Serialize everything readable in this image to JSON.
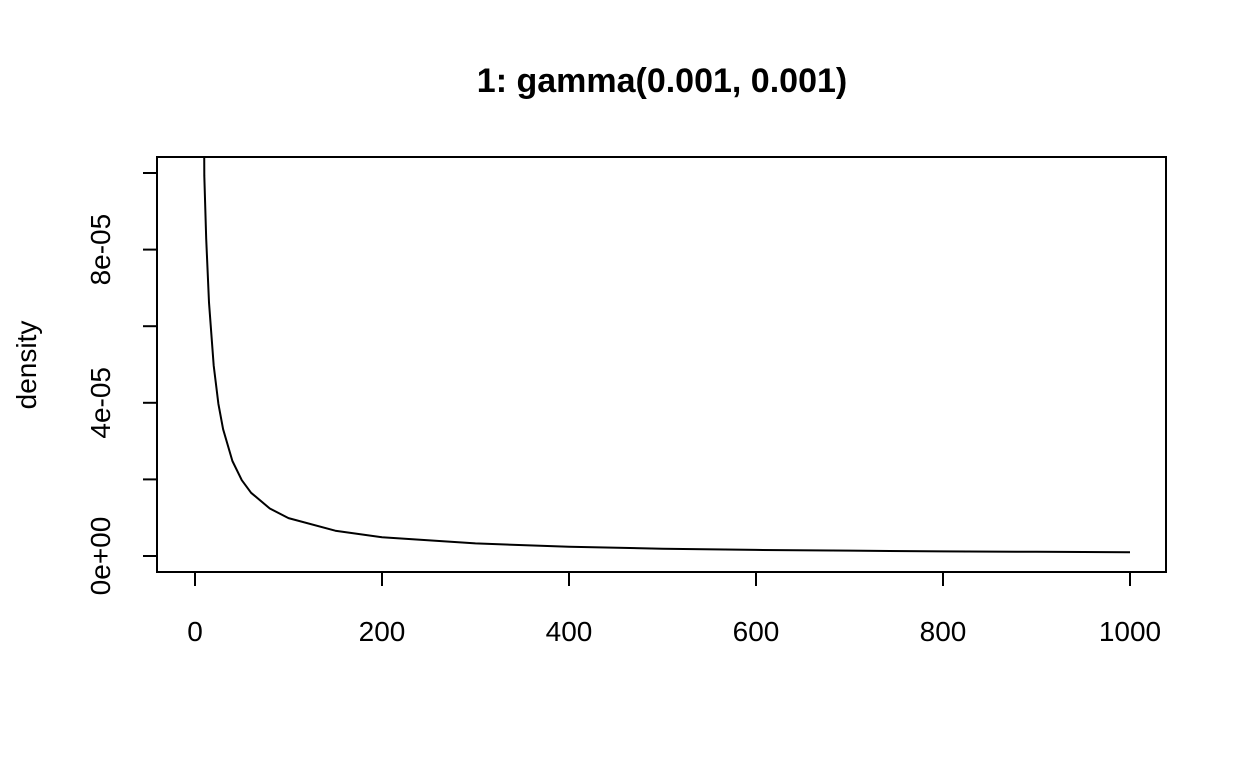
{
  "chart_data": {
    "type": "line",
    "title": "1: gamma(0.001, 0.001)",
    "xlabel": "",
    "ylabel": "density",
    "xlim": [
      0,
      1000
    ],
    "ylim": [
      0,
      0.0001
    ],
    "x_ticks": [
      0,
      200,
      400,
      600,
      800,
      1000
    ],
    "x_tick_labels": [
      "0",
      "200",
      "400",
      "600",
      "800",
      "1000"
    ],
    "y_ticks": [
      0,
      2e-05,
      4e-05,
      6e-05,
      8e-05,
      0.0001
    ],
    "y_tick_labels": [
      "0e+00",
      "",
      "4e-05",
      "",
      "8e-05",
      ""
    ],
    "grid": false,
    "line_color": "#000000",
    "series": [
      {
        "x": [
          10,
          12,
          15,
          20,
          25,
          30,
          40,
          50,
          60,
          80,
          100,
          150,
          200,
          300,
          400,
          500,
          600,
          700,
          800,
          900,
          1000
        ],
        "y": [
          9.93e-05,
          8.28e-05,
          6.62e-05,
          4.97e-05,
          3.97e-05,
          3.31e-05,
          2.48e-05,
          1.98e-05,
          1.65e-05,
          1.24e-05,
          9.9e-06,
          6.6e-06,
          4.9e-06,
          3.3e-06,
          2.4e-06,
          1.9e-06,
          1.6e-06,
          1.4e-06,
          1.2e-06,
          1.1e-06,
          1e-06
        ]
      }
    ]
  }
}
